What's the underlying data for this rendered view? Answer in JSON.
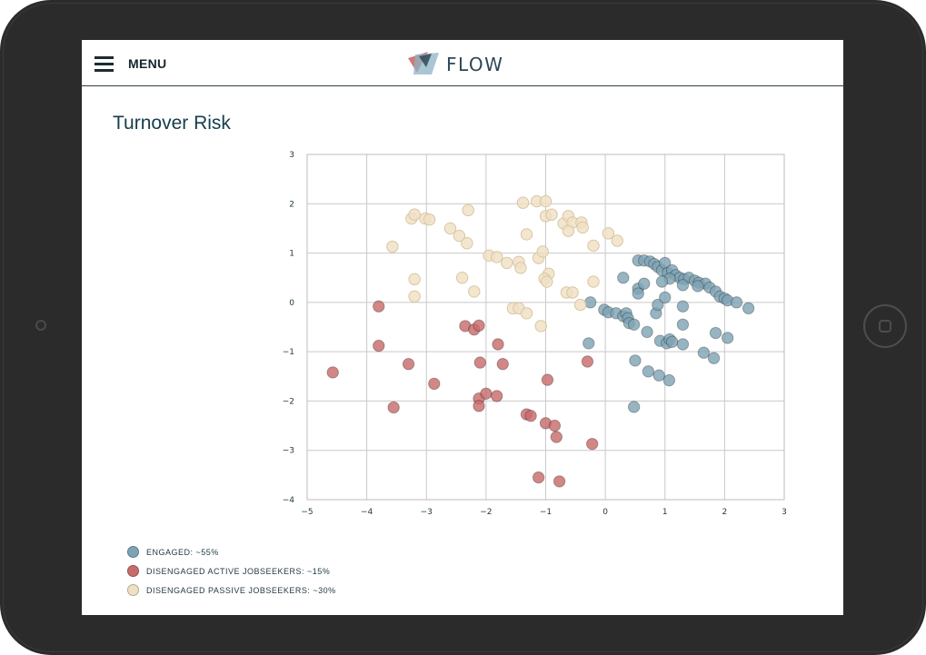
{
  "header": {
    "menu_label": "MENU",
    "brand": "FLOW"
  },
  "page": {
    "title": "Turnover Risk"
  },
  "legend": [
    {
      "label": "ENGAGED: ~55%",
      "color": "#7fa3b5"
    },
    {
      "label": "DISENGAGED ACTIVE JOBSEEKERS: ~15%",
      "color": "#c86b6b"
    },
    {
      "label": "DISENGAGED PASSIVE JOBSEEKERS: ~30%",
      "color": "#f0e0c4"
    }
  ],
  "chart_data": {
    "type": "scatter",
    "xlim": [
      -5,
      3
    ],
    "ylim": [
      -4,
      3
    ],
    "x_ticks": [
      -5,
      -4,
      -3,
      -2,
      -1,
      0,
      1,
      2,
      3
    ],
    "y_ticks": [
      -4,
      -3,
      -2,
      -1,
      0,
      1,
      2,
      3
    ],
    "grid": true,
    "legend_position": "bottom-left",
    "series": [
      {
        "name": "ENGAGED: ~55%",
        "color": "#7fa3b5",
        "points": [
          [
            0.55,
            0.85
          ],
          [
            0.65,
            0.85
          ],
          [
            0.75,
            0.83
          ],
          [
            0.82,
            0.78
          ],
          [
            0.88,
            0.72
          ],
          [
            0.95,
            0.65
          ],
          [
            1.0,
            0.8
          ],
          [
            1.05,
            0.6
          ],
          [
            1.12,
            0.65
          ],
          [
            1.18,
            0.55
          ],
          [
            1.25,
            0.5
          ],
          [
            1.32,
            0.47
          ],
          [
            1.4,
            0.5
          ],
          [
            1.5,
            0.44
          ],
          [
            1.57,
            0.4
          ],
          [
            1.68,
            0.38
          ],
          [
            1.75,
            0.3
          ],
          [
            1.85,
            0.22
          ],
          [
            1.92,
            0.12
          ],
          [
            2.0,
            0.08
          ],
          [
            2.05,
            0.04
          ],
          [
            2.2,
            0.0
          ],
          [
            2.4,
            -0.12
          ],
          [
            1.55,
            0.33
          ],
          [
            1.3,
            0.35
          ],
          [
            1.08,
            0.48
          ],
          [
            0.95,
            0.42
          ],
          [
            0.3,
            0.5
          ],
          [
            0.55,
            0.28
          ],
          [
            0.55,
            0.18
          ],
          [
            0.65,
            0.38
          ],
          [
            -0.25,
            0.0
          ],
          [
            -0.02,
            -0.15
          ],
          [
            0.05,
            -0.2
          ],
          [
            0.18,
            -0.22
          ],
          [
            0.3,
            -0.28
          ],
          [
            0.35,
            -0.22
          ],
          [
            0.38,
            -0.32
          ],
          [
            0.4,
            -0.42
          ],
          [
            0.48,
            -0.45
          ],
          [
            0.7,
            -0.6
          ],
          [
            0.85,
            -0.22
          ],
          [
            0.88,
            -0.05
          ],
          [
            1.0,
            0.1
          ],
          [
            1.3,
            -0.08
          ],
          [
            1.3,
            -0.45
          ],
          [
            0.92,
            -0.78
          ],
          [
            1.03,
            -0.83
          ],
          [
            1.08,
            -0.75
          ],
          [
            1.12,
            -0.8
          ],
          [
            1.3,
            -0.85
          ],
          [
            1.65,
            -1.02
          ],
          [
            1.82,
            -1.13
          ],
          [
            1.85,
            -0.62
          ],
          [
            2.05,
            -0.72
          ],
          [
            0.5,
            -1.18
          ],
          [
            0.72,
            -1.4
          ],
          [
            0.9,
            -1.48
          ],
          [
            1.07,
            -1.58
          ],
          [
            0.48,
            -2.12
          ],
          [
            -0.28,
            -0.83
          ]
        ]
      },
      {
        "name": "DISENGAGED ACTIVE JOBSEEKERS: ~15%",
        "color": "#c86b6b",
        "points": [
          [
            -3.8,
            -0.08
          ],
          [
            -2.35,
            -0.48
          ],
          [
            -2.2,
            -0.55
          ],
          [
            -2.12,
            -0.47
          ],
          [
            -1.8,
            -0.85
          ],
          [
            -3.8,
            -0.88
          ],
          [
            -3.3,
            -1.25
          ],
          [
            -2.1,
            -1.22
          ],
          [
            -1.72,
            -1.25
          ],
          [
            -0.3,
            -1.2
          ],
          [
            -4.57,
            -1.42
          ],
          [
            -2.87,
            -1.65
          ],
          [
            -0.97,
            -1.57
          ],
          [
            -3.55,
            -2.13
          ],
          [
            -2.12,
            -1.95
          ],
          [
            -2.12,
            -2.1
          ],
          [
            -2.0,
            -1.85
          ],
          [
            -1.82,
            -1.9
          ],
          [
            -1.32,
            -2.27
          ],
          [
            -1.25,
            -2.3
          ],
          [
            -1.0,
            -2.45
          ],
          [
            -0.85,
            -2.5
          ],
          [
            -0.82,
            -2.73
          ],
          [
            -0.22,
            -2.87
          ],
          [
            -1.12,
            -3.55
          ],
          [
            -0.77,
            -3.63
          ]
        ]
      },
      {
        "name": "DISENGAGED PASSIVE JOBSEEKERS: ~30%",
        "color": "#f0e0c4",
        "points": [
          [
            -3.25,
            1.7
          ],
          [
            -3.2,
            1.78
          ],
          [
            -3.02,
            1.7
          ],
          [
            -2.95,
            1.68
          ],
          [
            -2.3,
            1.87
          ],
          [
            -1.38,
            2.02
          ],
          [
            -1.15,
            2.05
          ],
          [
            -1.0,
            2.05
          ],
          [
            -1.0,
            1.75
          ],
          [
            -0.9,
            1.78
          ],
          [
            -0.7,
            1.6
          ],
          [
            -0.62,
            1.75
          ],
          [
            -0.55,
            1.62
          ],
          [
            -0.62,
            1.45
          ],
          [
            -0.4,
            1.62
          ],
          [
            -0.38,
            1.52
          ],
          [
            0.05,
            1.4
          ],
          [
            0.2,
            1.25
          ],
          [
            -2.6,
            1.5
          ],
          [
            -2.45,
            1.35
          ],
          [
            -2.32,
            1.2
          ],
          [
            -1.32,
            1.38
          ],
          [
            -3.57,
            1.13
          ],
          [
            -0.2,
            1.15
          ],
          [
            -1.95,
            0.95
          ],
          [
            -1.82,
            0.92
          ],
          [
            -1.65,
            0.8
          ],
          [
            -1.45,
            0.82
          ],
          [
            -1.42,
            0.7
          ],
          [
            -1.12,
            0.9
          ],
          [
            -1.05,
            1.03
          ],
          [
            -2.4,
            0.5
          ],
          [
            -3.2,
            0.47
          ],
          [
            -0.95,
            0.58
          ],
          [
            -1.02,
            0.48
          ],
          [
            -0.98,
            0.42
          ],
          [
            -0.2,
            0.42
          ],
          [
            -3.2,
            0.12
          ],
          [
            -2.2,
            0.22
          ],
          [
            -0.65,
            0.2
          ],
          [
            -0.55,
            0.2
          ],
          [
            -0.42,
            -0.05
          ],
          [
            -1.55,
            -0.12
          ],
          [
            -1.45,
            -0.12
          ],
          [
            -1.32,
            -0.22
          ],
          [
            -1.08,
            -0.48
          ]
        ]
      }
    ]
  }
}
